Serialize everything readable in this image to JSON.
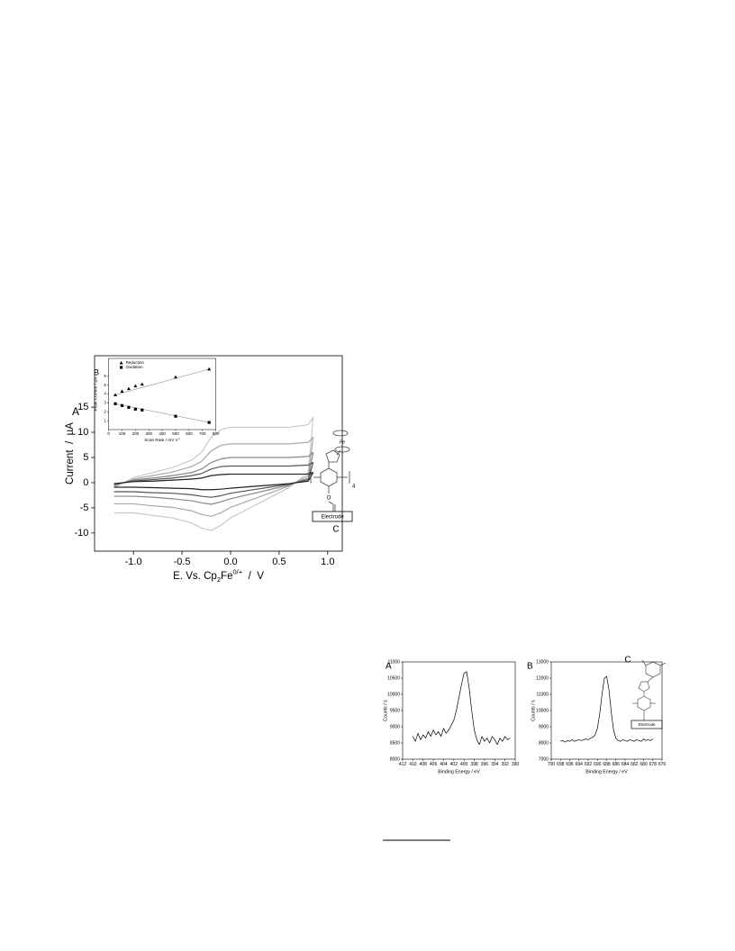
{
  "chart_data": [
    {
      "type": "line",
      "panel_label": "A",
      "xlabel": {
        "main": "E. Vs. Cp",
        "sub": "2",
        "main2": "Fe",
        "sup": "0/+",
        "unit": "  /  V"
      },
      "ylabel": "Current  /  µA",
      "x": [
        -1.2,
        -1.0,
        -0.8,
        -0.6,
        -0.4,
        -0.3,
        -0.2,
        -0.1,
        0.0,
        0.2,
        0.4,
        0.6,
        0.8,
        0.85,
        0.85,
        0.8,
        0.6,
        0.4,
        0.2,
        0.0,
        -0.1,
        -0.2,
        -0.3,
        -0.4,
        -0.6,
        -0.8,
        -1.0,
        -1.2
      ],
      "series": [
        {
          "color": "#c8c8c8",
          "values": [
            -1,
            1,
            2,
            3,
            4.5,
            6,
            9,
            10.5,
            11,
            11,
            11,
            11,
            11.5,
            13,
            13,
            2,
            -1,
            -3,
            -5,
            -7,
            -8.5,
            -9.5,
            -9,
            -8,
            -7,
            -6.5,
            -6,
            -6
          ]
        },
        {
          "color": "#a8a8a8",
          "values": [
            -0.7,
            0.7,
            1.4,
            2.1,
            3.2,
            4.2,
            6.3,
            7.4,
            7.7,
            7.7,
            7.7,
            7.7,
            8,
            9,
            9,
            1.4,
            -0.7,
            -2.1,
            -3.5,
            -4.9,
            -6,
            -6.7,
            -6.3,
            -5.6,
            -4.9,
            -4.6,
            -4.2,
            -4.2
          ]
        },
        {
          "color": "#888888",
          "values": [
            -0.5,
            0.5,
            0.9,
            1.4,
            2,
            2.7,
            4,
            4.7,
            5,
            5,
            5,
            5,
            5.2,
            6,
            6,
            0.9,
            -0.5,
            -1.4,
            -2.3,
            -3.2,
            -3.8,
            -4.3,
            -4,
            -3.6,
            -3.2,
            -2.9,
            -2.7,
            -2.7
          ]
        },
        {
          "color": "#555555",
          "values": [
            -0.3,
            0.3,
            0.6,
            0.9,
            1.4,
            1.8,
            2.7,
            3.2,
            3.3,
            3.3,
            3.3,
            3.3,
            3.5,
            4,
            4,
            0.6,
            -0.3,
            -0.9,
            -1.5,
            -2.1,
            -2.6,
            -2.9,
            -2.7,
            -2.4,
            -2.1,
            -2,
            -1.8,
            -1.8
          ]
        },
        {
          "color": "#222222",
          "values": [
            -0.2,
            0.2,
            0.3,
            0.5,
            0.7,
            0.9,
            1.4,
            1.6,
            1.7,
            1.7,
            1.7,
            1.7,
            1.7,
            2,
            2,
            0.3,
            -0.2,
            -0.5,
            -0.8,
            -1.1,
            -1.3,
            -1.4,
            -1.4,
            -1.2,
            -1.1,
            -1,
            -0.9,
            -0.9
          ]
        }
      ],
      "xlim": [
        -1.4,
        1.15
      ],
      "xticks": [
        {
          "value": -1,
          "label": "-1.0"
        },
        -0.5,
        {
          "value": 0,
          "label": "0.0"
        },
        0.5,
        {
          "value": 1,
          "label": "1.0"
        }
      ],
      "ylim": [
        -13.6,
        25.2
      ],
      "yticks": [
        -10,
        -5,
        0,
        5,
        10,
        15
      ]
    },
    {
      "type": "scatter",
      "panel_label": "B",
      "xlabel": {
        "main": "Scan Rate / mV s",
        "sup": "-1"
      },
      "ylabel": "Peak Current / µA",
      "series": [
        {
          "name": "Reduction",
          "marker": "triangle",
          "color": "#000000",
          "x": [
            50,
            100,
            150,
            200,
            250,
            500,
            750
          ],
          "values": [
            3.9,
            4.3,
            4.6,
            4.9,
            5.1,
            5.9,
            6.8
          ]
        },
        {
          "name": "Oxidation",
          "marker": "square",
          "color": "#000000",
          "x": [
            50,
            100,
            150,
            200,
            250,
            500,
            750
          ],
          "values": [
            2.9,
            2.7,
            2.5,
            2.3,
            2.2,
            1.5,
            0.8
          ]
        }
      ],
      "xlim": [
        0,
        800
      ],
      "xticks": [
        0,
        100,
        200,
        300,
        400,
        500,
        600,
        700,
        800
      ],
      "ylim": [
        0,
        8
      ],
      "yticks": [
        1,
        2,
        3,
        4,
        5,
        6
      ]
    },
    {
      "type": "line",
      "panel_label": "A",
      "xlabel": "Binding Energy / eV",
      "ylabel": "Counts / s",
      "color": "#000000",
      "x": [
        410,
        409.5,
        409,
        408.5,
        408,
        407.5,
        407,
        406.5,
        406,
        405.5,
        405,
        404.5,
        404,
        403.5,
        403,
        402.5,
        402,
        401.5,
        401,
        400.5,
        400,
        399.5,
        399,
        398.5,
        398,
        397.5,
        397,
        396.5,
        396,
        395.5,
        395,
        394.5,
        394,
        393.5,
        393,
        392.5,
        392,
        391.5,
        391
      ],
      "values": [
        8700,
        8550,
        8800,
        8600,
        8750,
        8650,
        8850,
        8700,
        8900,
        8750,
        8850,
        8700,
        8950,
        8800,
        8900,
        9050,
        9200,
        9500,
        9900,
        10300,
        10650,
        10700,
        10200,
        9500,
        8900,
        8600,
        8450,
        8700,
        8550,
        8650,
        8500,
        8700,
        8600,
        8450,
        8650,
        8550,
        8700,
        8600,
        8650
      ],
      "xlim": [
        412,
        390
      ],
      "xticks": [
        412,
        410,
        408,
        406,
        404,
        402,
        400,
        398,
        396,
        394,
        392,
        390
      ],
      "ylim": [
        8000,
        11000
      ],
      "yticks": [
        8000,
        8500,
        9000,
        9500,
        10000,
        10500,
        11000
      ]
    },
    {
      "type": "line",
      "panel_label": "B",
      "xlabel": "Binding Energy / eV",
      "ylabel": "Counts / s",
      "color": "#000000",
      "x": [
        698,
        697.5,
        697,
        696.5,
        696,
        695.5,
        695,
        694.5,
        694,
        693.5,
        693,
        692.5,
        692,
        691.5,
        691,
        690.5,
        690,
        689.5,
        689,
        688.5,
        688,
        687.5,
        687,
        686.5,
        686,
        685.5,
        685,
        684.5,
        684,
        683.5,
        683,
        682.5,
        682,
        681.5,
        681,
        680.5,
        680,
        679.5,
        679,
        678.5,
        678
      ],
      "values": [
        8100,
        8150,
        8050,
        8150,
        8100,
        8200,
        8100,
        8150,
        8200,
        8150,
        8200,
        8250,
        8200,
        8300,
        8350,
        8500,
        8900,
        9800,
        11000,
        12000,
        12100,
        11300,
        9900,
        8800,
        8300,
        8150,
        8100,
        8200,
        8150,
        8100,
        8200,
        8150,
        8100,
        8200,
        8150,
        8100,
        8250,
        8150,
        8200,
        8150,
        8250
      ],
      "xlim": [
        700,
        676
      ],
      "xticks": [
        700,
        698,
        696,
        694,
        692,
        690,
        688,
        686,
        684,
        682,
        680,
        678,
        676
      ],
      "ylim": [
        7000,
        13000
      ],
      "yticks": [
        7000,
        8000,
        9000,
        10000,
        11000,
        12000,
        13000
      ]
    }
  ],
  "structures": {
    "cv_molecule": {
      "metal": "Fe",
      "repeat": "4",
      "oxygen": "O",
      "surface": "Electrode",
      "label": "C"
    },
    "xps_molecule": {
      "surface": "Electrode",
      "label": "C"
    }
  }
}
